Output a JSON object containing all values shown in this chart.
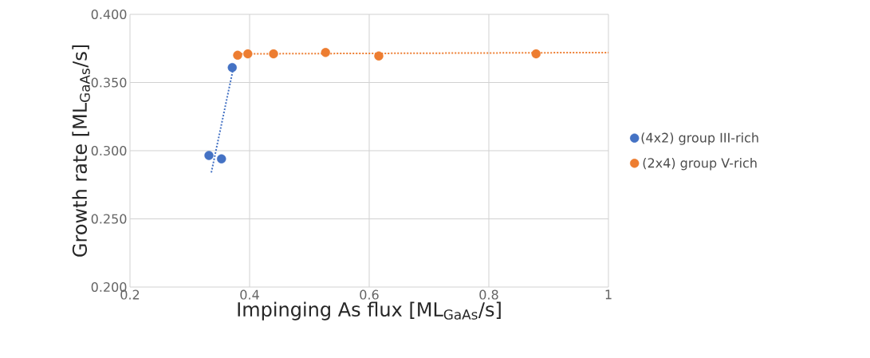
{
  "chart_data": {
    "type": "scatter",
    "xlabel": "Impinging As flux [ML$_{GaAs}$/s]",
    "ylabel": "Growth rate [ML$_{GaAs}$/s]",
    "xlim": [
      0.2,
      1
    ],
    "ylim": [
      0.2,
      0.4
    ],
    "xticks": [
      0.2,
      0.4,
      0.6,
      0.8,
      1
    ],
    "yticks": [
      {
        "value": 0.2,
        "label": "0.200"
      },
      {
        "value": 0.25,
        "label": "0.250"
      },
      {
        "value": 0.3,
        "label": "0.300"
      },
      {
        "value": 0.35,
        "label": "0.350"
      },
      {
        "value": 0.4,
        "label": "0.400"
      }
    ],
    "grid": true,
    "legend": "right",
    "series": [
      {
        "name": "(4x2) group III-rich",
        "marker": "circle",
        "color": "#4472c4",
        "x": [
          0.332,
          0.353,
          0.371
        ],
        "values": [
          0.2965,
          0.294,
          0.361
        ]
      },
      {
        "name": "(2x4) group V-rich",
        "marker": "circle",
        "color": "#ed7d31",
        "x": [
          0.38,
          0.397,
          0.44,
          0.527,
          0.616,
          0.879
        ],
        "values": [
          0.37,
          0.371,
          0.371,
          0.372,
          0.3695,
          0.371
        ]
      },
      {
        "type": "line",
        "marker": "none",
        "line_style": "dotted",
        "color": "#4472c4",
        "x": [
          0.336,
          0.373
        ],
        "values": [
          0.284,
          0.361
        ]
      },
      {
        "type": "line",
        "marker": "none",
        "line_style": "dotted",
        "color": "#ed7d31",
        "x": [
          0.375,
          1.0
        ],
        "values": [
          0.371,
          0.372
        ]
      }
    ]
  }
}
